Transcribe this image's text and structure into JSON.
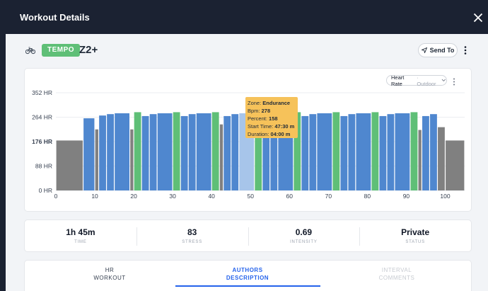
{
  "modal": {
    "title": "Workout Details"
  },
  "workout": {
    "badge": "TEMPO",
    "badge_color": "#5fbf77",
    "name": "Z2+",
    "send_label": "Send To",
    "icons": [
      "bike-icon",
      "send-icon",
      "kebab-icon",
      "close-icon"
    ]
  },
  "chart": {
    "selector_label": "Heart Rate",
    "selector_sub": "· Outdoor",
    "tooltip": {
      "zone_label": "Zone:",
      "zone": "Endurance",
      "bpm_label": "Bpm:",
      "bpm": "278",
      "percent_label": "Percent:",
      "percent": "158",
      "start_label": "Start Time:",
      "start": "47:30 m",
      "duration_label": "Duration:",
      "duration": "04:00 m"
    }
  },
  "chart_data": {
    "type": "bar",
    "ylim": [
      0,
      352
    ],
    "y_ticks": [
      {
        "value": 352,
        "label": "352 HR",
        "bold": false
      },
      {
        "value": 264,
        "label": "264 HR",
        "bold": false
      },
      {
        "value": 176,
        "label": "176 HR",
        "bold": true
      },
      {
        "value": 88,
        "label": "88 HR",
        "bold": false
      },
      {
        "value": 0,
        "label": "0 HR",
        "bold": false
      }
    ],
    "xlim": [
      0,
      105
    ],
    "x_ticks": [
      0,
      10,
      20,
      30,
      40,
      50,
      60,
      70,
      80,
      90,
      100
    ],
    "colors": {
      "gray": "#808080",
      "blue": "#4f87cf",
      "green": "#5fbf77",
      "highlight": "#a7c5ea"
    },
    "bars": [
      {
        "start": 0,
        "end": 7,
        "value": 180,
        "color": "gray"
      },
      {
        "start": 7,
        "end": 10,
        "value": 260,
        "color": "blue"
      },
      {
        "start": 10,
        "end": 11,
        "value": 220,
        "color": "gray"
      },
      {
        "start": 11,
        "end": 13,
        "value": 270,
        "color": "blue"
      },
      {
        "start": 13,
        "end": 15,
        "value": 275,
        "color": "blue"
      },
      {
        "start": 15,
        "end": 19,
        "value": 278,
        "color": "blue"
      },
      {
        "start": 19,
        "end": 20,
        "value": 220,
        "color": "gray"
      },
      {
        "start": 20,
        "end": 22,
        "value": 282,
        "color": "green"
      },
      {
        "start": 22,
        "end": 24,
        "value": 268,
        "color": "blue"
      },
      {
        "start": 24,
        "end": 26,
        "value": 275,
        "color": "blue"
      },
      {
        "start": 26,
        "end": 30,
        "value": 278,
        "color": "blue"
      },
      {
        "start": 30,
        "end": 32,
        "value": 282,
        "color": "green"
      },
      {
        "start": 32,
        "end": 34,
        "value": 268,
        "color": "blue"
      },
      {
        "start": 34,
        "end": 36,
        "value": 275,
        "color": "blue"
      },
      {
        "start": 36,
        "end": 40,
        "value": 278,
        "color": "blue"
      },
      {
        "start": 40,
        "end": 42,
        "value": 282,
        "color": "green"
      },
      {
        "start": 42,
        "end": 43,
        "value": 238,
        "color": "gray"
      },
      {
        "start": 43,
        "end": 45,
        "value": 268,
        "color": "blue"
      },
      {
        "start": 45,
        "end": 47,
        "value": 275,
        "color": "blue"
      },
      {
        "start": 47,
        "end": 51,
        "value": 278,
        "color": "highlight"
      },
      {
        "start": 51,
        "end": 53,
        "value": 282,
        "color": "green"
      },
      {
        "start": 53,
        "end": 55,
        "value": 268,
        "color": "blue"
      },
      {
        "start": 55,
        "end": 57,
        "value": 275,
        "color": "blue"
      },
      {
        "start": 57,
        "end": 61,
        "value": 278,
        "color": "blue"
      },
      {
        "start": 61,
        "end": 63,
        "value": 282,
        "color": "green"
      },
      {
        "start": 63,
        "end": 65,
        "value": 268,
        "color": "blue"
      },
      {
        "start": 65,
        "end": 67,
        "value": 275,
        "color": "blue"
      },
      {
        "start": 67,
        "end": 71,
        "value": 278,
        "color": "blue"
      },
      {
        "start": 71,
        "end": 73,
        "value": 282,
        "color": "green"
      },
      {
        "start": 73,
        "end": 75,
        "value": 268,
        "color": "blue"
      },
      {
        "start": 75,
        "end": 77,
        "value": 275,
        "color": "blue"
      },
      {
        "start": 77,
        "end": 81,
        "value": 278,
        "color": "blue"
      },
      {
        "start": 81,
        "end": 83,
        "value": 282,
        "color": "green"
      },
      {
        "start": 83,
        "end": 85,
        "value": 268,
        "color": "blue"
      },
      {
        "start": 85,
        "end": 87,
        "value": 275,
        "color": "blue"
      },
      {
        "start": 87,
        "end": 91,
        "value": 278,
        "color": "blue"
      },
      {
        "start": 91,
        "end": 93,
        "value": 282,
        "color": "green"
      },
      {
        "start": 93,
        "end": 94,
        "value": 218,
        "color": "gray"
      },
      {
        "start": 94,
        "end": 96,
        "value": 268,
        "color": "blue"
      },
      {
        "start": 96,
        "end": 98,
        "value": 275,
        "color": "blue"
      },
      {
        "start": 98,
        "end": 100,
        "value": 228,
        "color": "gray"
      },
      {
        "start": 100,
        "end": 105,
        "value": 180,
        "color": "gray"
      }
    ]
  },
  "stats": [
    {
      "value": "1h 45m",
      "label": "TIME"
    },
    {
      "value": "83",
      "label": "STRESS"
    },
    {
      "value": "0.69",
      "label": "INTENSITY"
    },
    {
      "value": "Private",
      "label": "STATUS"
    }
  ],
  "tabs": [
    {
      "line1": "HR",
      "line2": "WORKOUT"
    },
    {
      "line1": "AUTHORS",
      "line2": "DESCRIPTION"
    },
    {
      "line1": "INTERVAL",
      "line2": "COMMENTS"
    }
  ]
}
